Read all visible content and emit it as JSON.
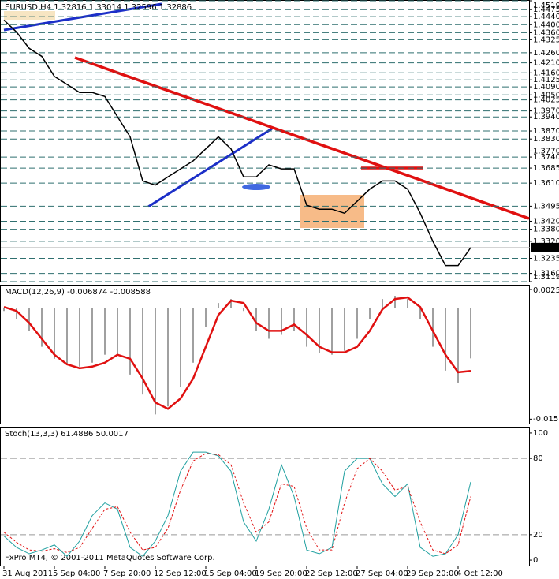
{
  "chart_data": [
    {
      "type": "line",
      "title": "EURUSD,H4  1.32816 1.33014 1.32596 1.32886",
      "categories": [
        "31 Aug 2011",
        null,
        null,
        null,
        "5 Sep 04:00",
        null,
        null,
        null,
        "7 Sep 20:00",
        null,
        null,
        null,
        "12 Sep 12:00",
        null,
        null,
        null,
        "15 Sep 04:00",
        null,
        null,
        null,
        "19 Sep 20:00",
        null,
        null,
        null,
        "22 Sep 12:00",
        null,
        null,
        null,
        "27 Sep 04:00",
        null,
        null,
        null,
        "29 Sep 20:00",
        null,
        null,
        null,
        "4 Oct 12:00",
        null
      ],
      "values": [
        1.4423,
        1.4363,
        1.4282,
        1.4242,
        1.4142,
        1.4102,
        1.4062,
        1.4062,
        1.4042,
        1.3941,
        1.3841,
        1.3621,
        1.36,
        1.3641,
        1.3681,
        1.3721,
        1.3781,
        1.3841,
        1.3781,
        1.3641,
        1.3641,
        1.3701,
        1.3681,
        1.3681,
        1.35,
        1.348,
        1.348,
        1.346,
        1.352,
        1.358,
        1.3621,
        1.3621,
        1.358,
        1.346,
        1.332,
        1.3199,
        1.3199,
        1.32886
      ],
      "color": "#000000",
      "ylim": [
        1.3119,
        1.4519
      ],
      "yticks": [
        {
          "value": 1.4519,
          "label": "1.45190"
        },
        {
          "value": 1.4475,
          "label": "1.44750"
        },
        {
          "value": 1.444,
          "label": "1.44400"
        },
        {
          "value": 1.44,
          "label": "1.44000"
        },
        {
          "value": 1.436,
          "label": "1.43600"
        },
        {
          "value": 1.4325,
          "label": "1.43250"
        },
        {
          "value": 1.426,
          "label": "1.42600"
        },
        {
          "value": 1.421,
          "label": "1.42100"
        },
        {
          "value": 1.416,
          "label": "1.41600"
        },
        {
          "value": 1.4125,
          "label": "1.41250"
        },
        {
          "value": 1.409,
          "label": "1.40900"
        },
        {
          "value": 1.405,
          "label": "1.40500"
        },
        {
          "value": 1.4025,
          "label": "1.40250"
        },
        {
          "value": 1.397,
          "label": "1.39700"
        },
        {
          "value": 1.394,
          "label": "1.39400"
        },
        {
          "value": 1.387,
          "label": "1.38700"
        },
        {
          "value": 1.383,
          "label": "1.38300"
        },
        {
          "value": 1.377,
          "label": "1.37700"
        },
        {
          "value": 1.374,
          "label": "1.37400"
        },
        {
          "value": 1.3685,
          "label": "1.36850"
        },
        {
          "value": 1.361,
          "label": "1.36100"
        },
        {
          "value": 1.3495,
          "label": "1.34950"
        },
        {
          "value": 1.342,
          "label": "1.34200"
        },
        {
          "value": 1.338,
          "label": "1.33800"
        },
        {
          "value": 1.332,
          "label": "1.33200"
        },
        {
          "value": 1.3235,
          "label": "1.32350"
        },
        {
          "value": 1.316,
          "label": "1.31600"
        },
        {
          "value": 1.3119,
          "label": "1.31190"
        }
      ],
      "current_price": 1.32886,
      "grid": true
    },
    {
      "type": "macd",
      "title": "MACD(12,26,9) -0.006874 -0.008588",
      "values": [
        -0.00038,
        -0.00147,
        -0.0031,
        -0.00528,
        -0.00692,
        -0.00768,
        -0.008,
        -0.00746,
        -0.00637,
        -0.00637,
        -0.00909,
        -0.01182,
        -0.01454,
        -0.01345,
        -0.01073,
        -0.00746,
        -0.00256,
        0.00071,
        0.00125,
        -0.00038,
        -0.0031,
        -0.00419,
        -0.00365,
        -0.0031,
        -0.00528,
        -0.00615,
        -0.00637,
        -0.00583,
        -0.00419,
        -0.00147,
        0.00125,
        0.00169,
        0.00125,
        -0.00147,
        -0.00528,
        -0.00855,
        -0.01018,
        -0.006874
      ],
      "color": "#a0a0a0",
      "signal": {
        "values": [
          0.00016,
          -0.00038,
          -0.00201,
          -0.00419,
          -0.00637,
          -0.00768,
          -0.00822,
          -0.008,
          -0.00746,
          -0.00637,
          -0.00692,
          -0.00964,
          -0.01291,
          -0.01378,
          -0.01236,
          -0.00964,
          -0.00528,
          -0.00093,
          0.00103,
          0.00071,
          -0.00201,
          -0.0031,
          -0.0031,
          -0.00223,
          -0.00365,
          -0.00528,
          -0.00604,
          -0.00604,
          -0.00528,
          -0.0031,
          -0.00016,
          0.00125,
          0.00147,
          0.00016,
          -0.0031,
          -0.00637,
          -0.00877,
          -0.008588
        ],
        "color": "#e01010"
      },
      "ylim": [
        -0.0158,
        0.0031
      ],
      "yticks": [
        0.00256,
        -0.01519
      ]
    },
    {
      "type": "line",
      "title": "Stoch(13,3,3) 61.4886 50.0017",
      "values": [
        19,
        10,
        5,
        8,
        12,
        3,
        15,
        35,
        45,
        40,
        10,
        3,
        15,
        35,
        70,
        85,
        85,
        82,
        70,
        30,
        15,
        40,
        75,
        50,
        8,
        5,
        10,
        70,
        80,
        80,
        60,
        50,
        60,
        10,
        3,
        5,
        20,
        61.4886
      ],
      "color": "#20a0a0",
      "signal": {
        "values": [
          22,
          14,
          8,
          7,
          9,
          6,
          10,
          25,
          40,
          42,
          22,
          8,
          10,
          25,
          55,
          78,
          84,
          83,
          75,
          45,
          22,
          30,
          60,
          58,
          25,
          8,
          8,
          45,
          72,
          80,
          70,
          55,
          58,
          30,
          8,
          5,
          12,
          50.0017
        ],
        "color": "#e01010"
      },
      "ylim": [
        -4.3,
        104.3
      ],
      "yticks": [
        100,
        80,
        20,
        0
      ]
    }
  ],
  "footer": "FxPro MT4, © 2001-2011 MetaQuotes Software Corp."
}
